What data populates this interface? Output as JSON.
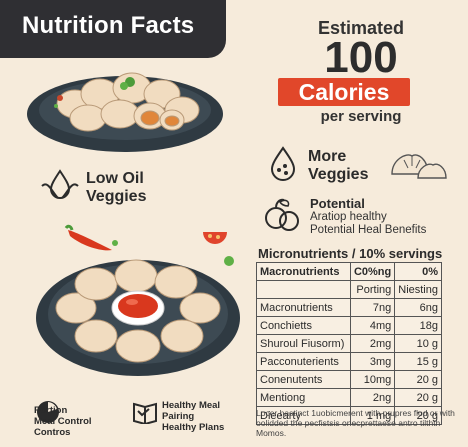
{
  "header": {
    "title": "Nutrition Facts"
  },
  "calories": {
    "estimated": "Estimated",
    "value": "100",
    "unit": "Calories",
    "per": "per serving"
  },
  "features": {
    "low_oil": {
      "line1": "Low Oil",
      "line2": "Veggies",
      "icon": "oil-drop-icon"
    },
    "more_veggies": {
      "line1": "More",
      "line2": "Veggies",
      "icon": "vegetable-drop-icon"
    },
    "potential": {
      "title": "Potential",
      "line1": "Aratiop healthy",
      "line2": "Potential Heal Benefits",
      "icon": "fruit-icon"
    }
  },
  "micronutrients": {
    "title": "Micronutrients / 10% servings",
    "headers": [
      "Macronutrients",
      "C0%ng",
      "0%"
    ],
    "rows": [
      {
        "name": "",
        "a": "Porting",
        "b": "Niesting"
      },
      {
        "name": "Macronutrients",
        "a": "7ng",
        "b": "6ng"
      },
      {
        "name": "Conchietts",
        "a": "4mg",
        "b": "18g"
      },
      {
        "name": "Shuroul Fiusorm)",
        "a": "2mg",
        "b": "10 g"
      },
      {
        "name": "Pacconuterients",
        "a": "3mg",
        "b": "15 g"
      },
      {
        "name": "Conenutents",
        "a": "10mg",
        "b": "20 g"
      },
      {
        "name": "Mentiong",
        "a": "2ng",
        "b": "20 g"
      },
      {
        "name": "Dieearty",
        "a": "1 mg",
        "b": "20 g"
      }
    ]
  },
  "footnote": "Locer hastinct 1uobicmerent with prupres flod or with oolidded the pecfistsis onecprettaese antro tilthth Momos.",
  "bottom": {
    "portion": {
      "line1": "Portion",
      "line2": "Meal Control",
      "line3": "Contros",
      "icon": "portion-icon"
    },
    "healthy": {
      "line1": "Healthy Meal",
      "line2": "Pairing",
      "line3": "Healthy Plans",
      "icon": "book-icon"
    }
  },
  "colors": {
    "accent": "#e1472a",
    "dark": "#2f2f33",
    "background": "#f6ebdb"
  }
}
